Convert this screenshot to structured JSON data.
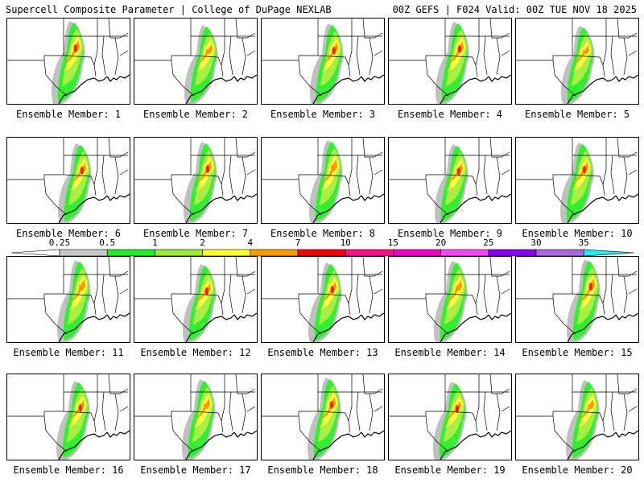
{
  "header": {
    "left_title": "Supercell Composite Parameter | College of DuPage NEXLAB",
    "right_title": "00Z GEFS | F024 Valid: 00Z TUE NOV 18 2025"
  },
  "panels": [
    {
      "label": "Ensemble Member: 1"
    },
    {
      "label": "Ensemble Member: 2"
    },
    {
      "label": "Ensemble Member: 3"
    },
    {
      "label": "Ensemble Member: 4"
    },
    {
      "label": "Ensemble Member: 5"
    },
    {
      "label": "Ensemble Member: 6"
    },
    {
      "label": "Ensemble Member: 7"
    },
    {
      "label": "Ensemble Member: 8"
    },
    {
      "label": "Ensemble Member: 9"
    },
    {
      "label": "Ensemble Member: 10"
    },
    {
      "label": "Ensemble Member: 11"
    },
    {
      "label": "Ensemble Member: 12"
    },
    {
      "label": "Ensemble Member: 13"
    },
    {
      "label": "Ensemble Member: 14"
    },
    {
      "label": "Ensemble Member: 15"
    },
    {
      "label": "Ensemble Member: 16"
    },
    {
      "label": "Ensemble Member: 17"
    },
    {
      "label": "Ensemble Member: 18"
    },
    {
      "label": "Ensemble Member: 19"
    },
    {
      "label": "Ensemble Member: 20"
    }
  ],
  "colorbar": {
    "ticks": [
      "0.25",
      "0.5",
      "1",
      "2",
      "4",
      "7",
      "10",
      "15",
      "20",
      "25",
      "30",
      "35"
    ],
    "colors": [
      "#c8c8c8",
      "#22ee22",
      "#99ee33",
      "#ffff33",
      "#ff9900",
      "#ee0000",
      "#ff1188",
      "#ee00cc",
      "#ff44ff",
      "#8800ee",
      "#aa66dd",
      "#22eeee"
    ]
  },
  "map_colors": {
    "gray": "#c0c0c0",
    "green": "#33ee33",
    "lightgreen": "#aaee44",
    "yellow": "#ffff44",
    "orange": "#ff9900",
    "red": "#ee2200"
  }
}
